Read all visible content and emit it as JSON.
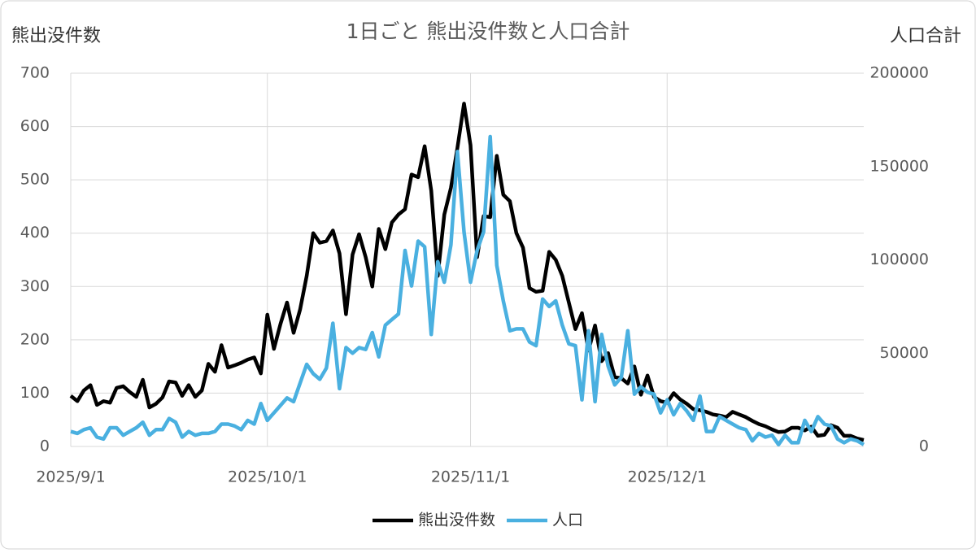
{
  "chart_data": {
    "type": "line",
    "title": "1日ごと 熊出没件数と人口合計",
    "y_label": "熊出没件数",
    "y2_label": "人口合計",
    "categories": [
      "2025/9/1",
      null,
      null,
      null,
      null,
      null,
      null,
      null,
      null,
      null,
      null,
      null,
      null,
      null,
      null,
      null,
      null,
      null,
      null,
      null,
      null,
      null,
      null,
      null,
      null,
      null,
      null,
      null,
      null,
      null,
      "2025/10/1",
      null,
      null,
      null,
      null,
      null,
      null,
      null,
      null,
      null,
      null,
      null,
      null,
      null,
      null,
      null,
      null,
      null,
      null,
      null,
      null,
      null,
      null,
      null,
      null,
      null,
      null,
      null,
      null,
      null,
      null,
      "2025/11/1",
      null,
      null,
      null,
      null,
      null,
      null,
      null,
      null,
      null,
      null,
      null,
      null,
      null,
      null,
      null,
      null,
      null,
      null,
      null,
      null,
      null,
      null,
      null,
      null,
      null,
      null,
      null,
      null,
      null,
      "2025/12/1",
      null,
      null,
      null,
      null,
      null,
      null,
      null,
      null,
      null,
      null,
      null,
      null,
      null,
      null,
      null,
      null,
      null,
      null,
      null,
      null,
      null,
      null,
      null,
      null,
      null,
      null,
      null,
      null,
      null,
      null
    ],
    "series": [
      {
        "name": "熊出没件数",
        "color": "#000000",
        "axis": "y",
        "values": [
          95,
          85,
          105,
          115,
          78,
          85,
          82,
          110,
          113,
          102,
          93,
          125,
          73,
          80,
          92,
          122,
          120,
          95,
          115,
          93,
          105,
          155,
          140,
          190,
          148,
          152,
          157,
          163,
          167,
          137,
          247,
          183,
          230,
          270,
          213,
          257,
          320,
          400,
          382,
          385,
          405,
          362,
          248,
          360,
          398,
          355,
          300,
          408,
          370,
          420,
          435,
          445,
          510,
          505,
          563,
          480,
          320,
          435,
          485,
          560,
          643,
          565,
          355,
          432,
          430,
          545,
          472,
          460,
          400,
          373,
          297,
          290,
          292,
          365,
          350,
          320,
          270,
          220,
          250,
          180,
          227,
          160,
          175,
          130,
          128,
          118,
          150,
          97,
          133,
          93,
          85,
          82,
          100,
          88,
          80,
          70,
          68,
          65,
          60,
          58,
          55,
          65,
          60,
          55,
          48,
          42,
          38,
          32,
          27,
          28,
          35,
          35,
          30,
          37,
          20,
          22,
          40,
          35,
          20,
          20,
          15,
          12
        ]
      },
      {
        "name": "人口",
        "color": "#4ab0e0",
        "axis": "y2",
        "values": [
          8000,
          7000,
          9000,
          10000,
          5000,
          4000,
          10000,
          10000,
          6000,
          8000,
          10000,
          13000,
          6000,
          9000,
          9000,
          15000,
          13000,
          5000,
          8000,
          6000,
          7000,
          7000,
          8000,
          12000,
          12000,
          11000,
          9000,
          14000,
          12000,
          23000,
          14000,
          18000,
          22000,
          26000,
          24000,
          34000,
          44000,
          39000,
          36000,
          42000,
          66000,
          31000,
          53000,
          50000,
          53000,
          52000,
          61000,
          48000,
          65000,
          68000,
          71000,
          105000,
          86000,
          110000,
          107000,
          60000,
          99000,
          88000,
          108000,
          158000,
          115000,
          88000,
          105000,
          115000,
          166000,
          97000,
          78000,
          62000,
          63000,
          63000,
          56000,
          54000,
          79000,
          75000,
          78000,
          65000,
          55000,
          54000,
          25000,
          62000,
          24000,
          60000,
          43000,
          33000,
          37000,
          62000,
          28000,
          32000,
          29000,
          28000,
          18000,
          25000,
          17000,
          23000,
          19000,
          14000,
          27000,
          8000,
          8000,
          16000,
          14000,
          12000,
          10000,
          9000,
          3000,
          7000,
          5000,
          6000,
          1000,
          6000,
          2000,
          2000,
          14000,
          8000,
          16000,
          12000,
          11000,
          4000,
          2000,
          4000,
          3000,
          1000
        ]
      }
    ],
    "ylim": [
      0,
      700
    ],
    "yticks": [
      0,
      100,
      200,
      300,
      400,
      500,
      600,
      700
    ],
    "y2lim": [
      0,
      200000
    ],
    "y2ticks": [
      0,
      50000,
      100000,
      150000,
      200000
    ],
    "grid": true,
    "legend": "bottom"
  }
}
